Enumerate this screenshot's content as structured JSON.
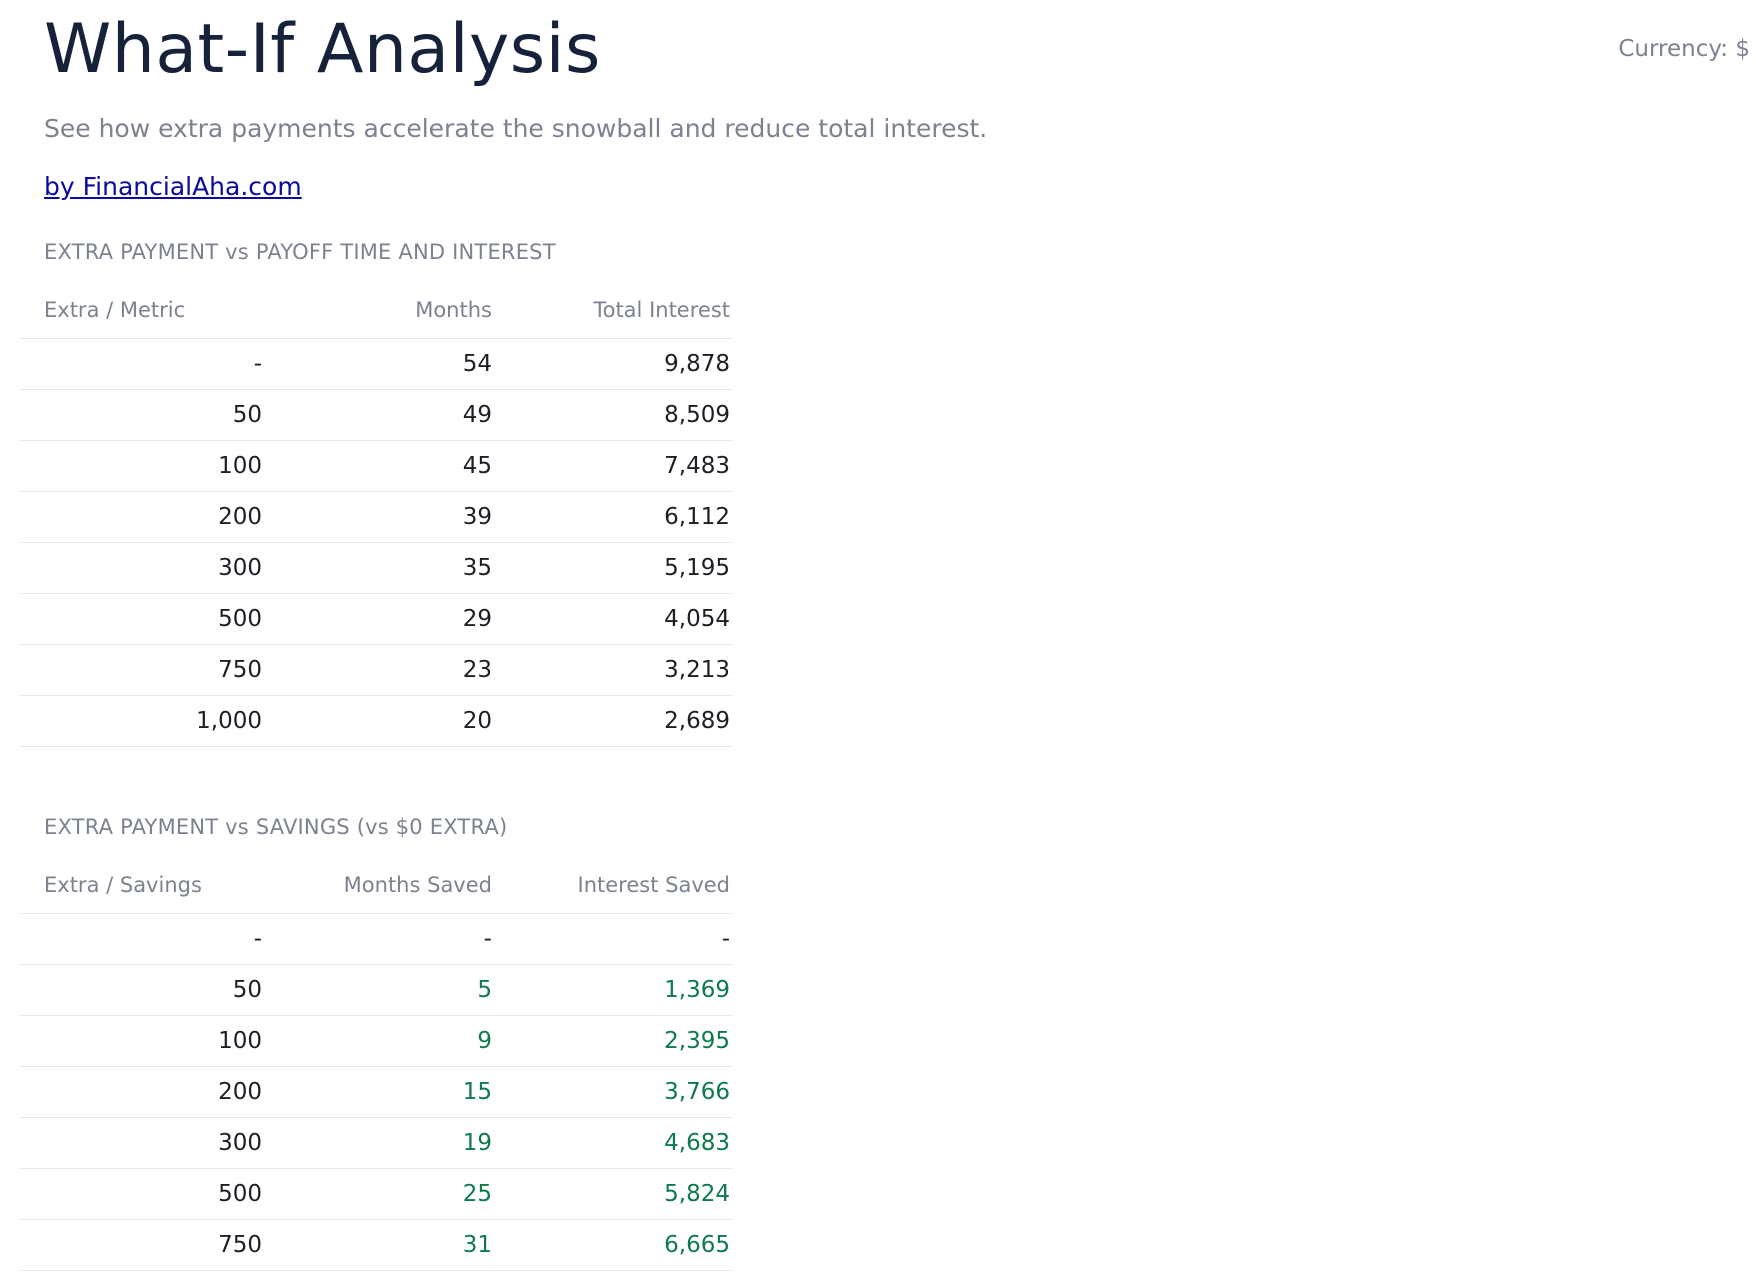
{
  "header": {
    "title": "What-If Analysis",
    "currency_label": "Currency: $",
    "subtitle": "See how extra payments accelerate the snowball and reduce total interest.",
    "byline": "by FinancialAha.com"
  },
  "payoff_table": {
    "heading": "EXTRA PAYMENT vs PAYOFF TIME AND INTEREST",
    "columns": [
      "Extra / Metric",
      "Months",
      "Total Interest"
    ],
    "rows": [
      [
        "-",
        "54",
        "9,878"
      ],
      [
        "50",
        "49",
        "8,509"
      ],
      [
        "100",
        "45",
        "7,483"
      ],
      [
        "200",
        "39",
        "6,112"
      ],
      [
        "300",
        "35",
        "5,195"
      ],
      [
        "500",
        "29",
        "4,054"
      ],
      [
        "750",
        "23",
        "3,213"
      ],
      [
        "1,000",
        "20",
        "2,689"
      ]
    ]
  },
  "savings_table": {
    "heading": "EXTRA PAYMENT vs SAVINGS (vs $0 EXTRA)",
    "columns": [
      "Extra / Savings",
      "Months Saved",
      "Interest Saved"
    ],
    "rows": [
      [
        "-",
        "-",
        "-"
      ],
      [
        "50",
        "5",
        "1,369"
      ],
      [
        "100",
        "9",
        "2,395"
      ],
      [
        "200",
        "15",
        "3,766"
      ],
      [
        "300",
        "19",
        "4,683"
      ],
      [
        "500",
        "25",
        "5,824"
      ],
      [
        "750",
        "31",
        "6,665"
      ]
    ]
  },
  "colors": {
    "title": "#16213a",
    "muted": "#7b8290",
    "link": "#0a0aa0",
    "savings_positive": "#0e7a4d"
  }
}
